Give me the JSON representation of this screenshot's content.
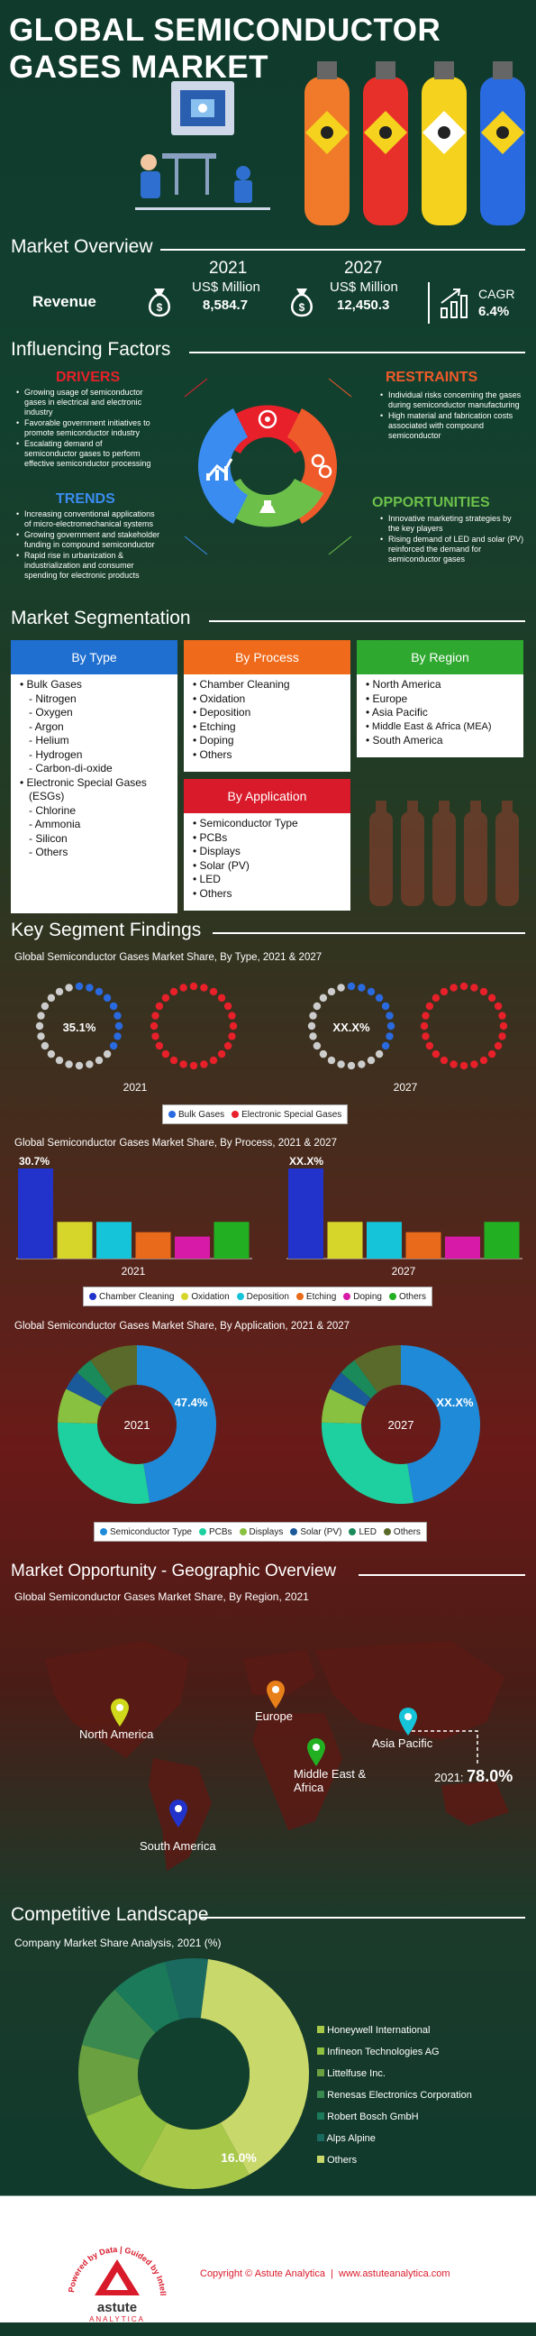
{
  "header": {
    "title_line1": "GLOBAL SEMICONDUCTOR",
    "title_line2": "GASES MARKET"
  },
  "overview": {
    "title": "Market Overview",
    "revenue_label": "Revenue",
    "y2021": "2021",
    "y2027": "2027",
    "unit": "US$ Million",
    "v2021": "8,584.7",
    "v2027": "12,450.3",
    "cagr_label": "CAGR",
    "cagr_value": "6.4%"
  },
  "factors": {
    "title": "Influencing Factors",
    "drivers": {
      "title": "DRIVERS",
      "items": [
        "Growing usage of semiconductor gases in electrical and electronic industry",
        "Favorable government initiatives to promote semiconductor industry",
        "Escalating demand of semiconductor gases to perform effective semiconductor processing"
      ]
    },
    "restraints": {
      "title": "RESTRAINTS",
      "items": [
        "Individual risks concerning the gases during semiconductor manufacturing",
        "High material and fabrication costs associated with compound semiconductor"
      ]
    },
    "trends": {
      "title": "TRENDS",
      "items": [
        "Increasing conventional applications of micro-electromechanical systems",
        "Growing government and stakeholder funding in compound semiconductor",
        "Rapid rise in urbanization & industrialization and consumer spending for electronic products"
      ]
    },
    "opportunities": {
      "title": "OPPORTUNITIES",
      "items": [
        "Innovative marketing strategies by the key players",
        "Rising demand of LED and solar (PV) reinforced the demand for semiconductor gases"
      ]
    }
  },
  "segmentation": {
    "title": "Market Segmentation",
    "by_type": {
      "head": "By Type",
      "lines": [
        "• Bulk Gases",
        "   - Nitrogen",
        "   - Oxygen",
        "   - Argon",
        "   - Helium",
        "   - Hydrogen",
        "   - Carbon-di-oxide",
        "• Electronic Special Gases",
        "   (ESGs)",
        "   - Chlorine",
        "   - Ammonia",
        "   - Silicon",
        "   - Others"
      ]
    },
    "by_process": {
      "head": "By Process",
      "lines": [
        "• Chamber Cleaning",
        "• Oxidation",
        "• Deposition",
        "• Etching",
        "• Doping",
        "• Others"
      ]
    },
    "by_region": {
      "head": "By Region",
      "lines": [
        "• North America",
        "• Europe",
        "• Asia Pacific",
        "• Middle East & Africa (MEA)",
        "• South America"
      ]
    },
    "by_application": {
      "head": "By Application",
      "lines": [
        "• Semiconductor Type",
        "• PCBs",
        "• Displays",
        "• Solar (PV)",
        "• LED",
        "• Others"
      ]
    }
  },
  "findings": {
    "title": "Key Segment Findings"
  },
  "colors": {
    "blue": "#2233cc",
    "yellow": "#d6d62a",
    "cyan": "#15c4d8",
    "orange": "#e86a1a",
    "magenta": "#d81aa8",
    "green": "#22b022",
    "drivers": "#e8202a",
    "restraints": "#ef5a2a",
    "trends": "#3a8cf0",
    "opportunities": "#6cc04a"
  },
  "chart_data": [
    {
      "type": "pie",
      "title": "Global Semiconductor Gases Market Share, By Type, 2021 & 2027",
      "series": [
        {
          "name": "2021",
          "labels": [
            "Bulk Gases",
            "Electronic Special Gases"
          ],
          "values": [
            35.1,
            64.9
          ],
          "label_text": "35.1%"
        },
        {
          "name": "2027",
          "labels": [
            "Bulk Gases",
            "Electronic Special Gases"
          ],
          "values": [
            35.1,
            64.9
          ],
          "label_text": "XX.X%"
        }
      ],
      "legend": [
        "Bulk Gases",
        "Electronic Special Gases"
      ]
    },
    {
      "type": "bar",
      "title": "Global Semiconductor Gases Market Share, By Process, 2021 & 2027",
      "categories": [
        "Chamber Cleaning",
        "Oxidation",
        "Deposition",
        "Etching",
        "Doping",
        "Others"
      ],
      "series": [
        {
          "name": "2021",
          "values": [
            30.7,
            12.5,
            12.5,
            9,
            7.5,
            12.5
          ],
          "label_text": "30.7%"
        },
        {
          "name": "2027",
          "values": [
            30.7,
            12.5,
            12.5,
            9,
            7.5,
            12.5
          ],
          "label_text": "XX.X%"
        }
      ]
    },
    {
      "type": "pie",
      "title": "Global Semiconductor Gases Market Share, By Application, 2021 & 2027",
      "categories": [
        "Semiconductor Type",
        "PCBs",
        "Displays",
        "Solar (PV)",
        "LED",
        "Others"
      ],
      "series": [
        {
          "name": "2021",
          "values": [
            47.4,
            28,
            7,
            4,
            3.6,
            10
          ],
          "label_text": "47.4%"
        },
        {
          "name": "2027",
          "values": [
            47.4,
            28,
            7,
            4,
            3.6,
            10
          ],
          "label_text": "XX.X%"
        }
      ]
    },
    {
      "type": "map",
      "title": "Global Semiconductor Gases Market Share, By Region, 2021",
      "regions": [
        "North America",
        "Europe",
        "Middle East & Africa",
        "Asia Pacific",
        "South America"
      ],
      "highlight": {
        "region": "Asia Pacific",
        "year": "2021:",
        "value": "78.0%"
      }
    },
    {
      "type": "pie",
      "title": "Company Market Share Analysis, 2021 (%)",
      "categories": [
        "Honeywell International",
        "Infineon Technologies AG",
        "Littelfuse Inc.",
        "Renesas Electronics Corporation",
        "Robert Bosch GmbH",
        "Alps Alpine",
        "Others"
      ],
      "values": [
        16.0,
        11,
        10,
        9,
        8,
        6,
        40
      ],
      "label_text": "16.0%"
    }
  ],
  "geo": {
    "title": "Market Opportunity - Geographic Overview"
  },
  "competitive": {
    "title": "Competitive Landscape"
  },
  "footer": {
    "copyright": "Copyright © Astute Analytica  |  www.astuteanalytica.com",
    "logo_text": "astute",
    "logo_sub": "ANALYTICA",
    "tagline": "Powered by Data | Guided by Intelligence"
  }
}
